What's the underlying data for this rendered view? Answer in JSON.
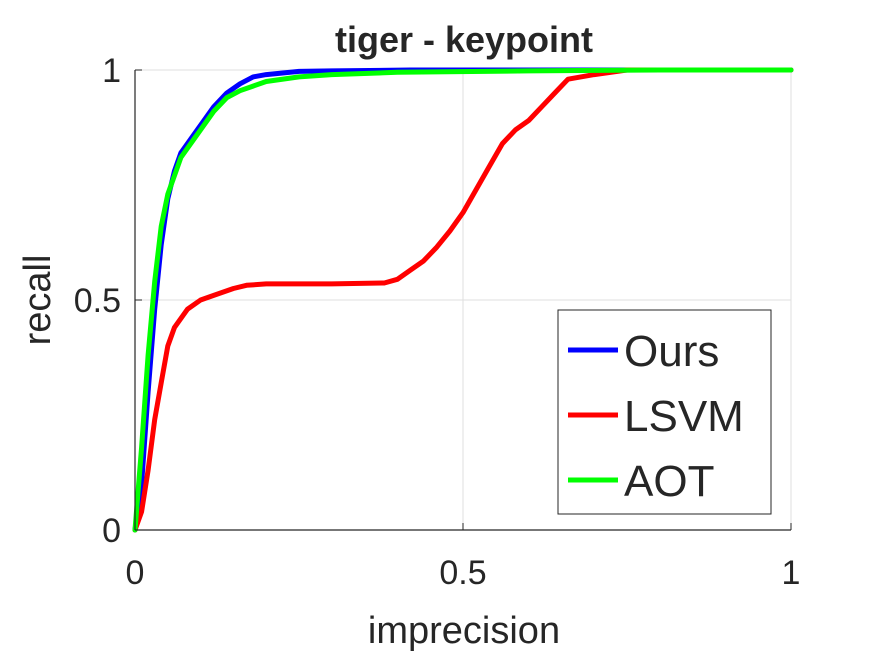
{
  "chart_data": {
    "type": "line",
    "title": "tiger - keypoint",
    "xlabel": "imprecision",
    "ylabel": "recall",
    "xlim": [
      0,
      1
    ],
    "ylim": [
      0,
      1
    ],
    "xticks": [
      "0",
      "0.5",
      "1"
    ],
    "yticks": [
      "0",
      "0.5",
      "1"
    ],
    "grid": true,
    "legend_position": "bottom-right",
    "series": [
      {
        "name": "Ours",
        "color": "#0000ff",
        "x": [
          0,
          0.01,
          0.02,
          0.03,
          0.04,
          0.05,
          0.06,
          0.07,
          0.08,
          0.09,
          0.1,
          0.12,
          0.14,
          0.16,
          0.18,
          0.2,
          0.25,
          0.3,
          0.42,
          0.6,
          1.0
        ],
        "y": [
          0,
          0.1,
          0.3,
          0.48,
          0.62,
          0.72,
          0.78,
          0.82,
          0.84,
          0.86,
          0.88,
          0.92,
          0.95,
          0.97,
          0.985,
          0.99,
          0.997,
          0.998,
          1.0,
          1.0,
          1.0
        ]
      },
      {
        "name": "LSVM",
        "color": "#ff0000",
        "x": [
          0,
          0.01,
          0.02,
          0.03,
          0.04,
          0.05,
          0.06,
          0.07,
          0.08,
          0.1,
          0.12,
          0.15,
          0.17,
          0.2,
          0.3,
          0.38,
          0.4,
          0.42,
          0.44,
          0.46,
          0.48,
          0.5,
          0.52,
          0.54,
          0.56,
          0.58,
          0.6,
          0.62,
          0.64,
          0.66,
          0.7,
          0.75,
          1.0
        ],
        "y": [
          0,
          0.04,
          0.13,
          0.24,
          0.32,
          0.4,
          0.44,
          0.46,
          0.48,
          0.5,
          0.51,
          0.525,
          0.532,
          0.535,
          0.535,
          0.537,
          0.545,
          0.565,
          0.585,
          0.615,
          0.65,
          0.69,
          0.74,
          0.79,
          0.84,
          0.87,
          0.89,
          0.92,
          0.95,
          0.98,
          0.99,
          1.0,
          1.0
        ]
      },
      {
        "name": "AOT",
        "color": "#00ff00",
        "x": [
          0,
          0.01,
          0.02,
          0.03,
          0.04,
          0.05,
          0.06,
          0.07,
          0.08,
          0.09,
          0.1,
          0.12,
          0.14,
          0.16,
          0.18,
          0.2,
          0.25,
          0.3,
          0.4,
          0.6,
          0.8,
          1.0
        ],
        "y": [
          0,
          0.18,
          0.38,
          0.54,
          0.66,
          0.73,
          0.77,
          0.81,
          0.83,
          0.85,
          0.87,
          0.91,
          0.94,
          0.955,
          0.965,
          0.975,
          0.985,
          0.99,
          0.995,
          0.998,
          1.0,
          1.0
        ]
      }
    ]
  }
}
